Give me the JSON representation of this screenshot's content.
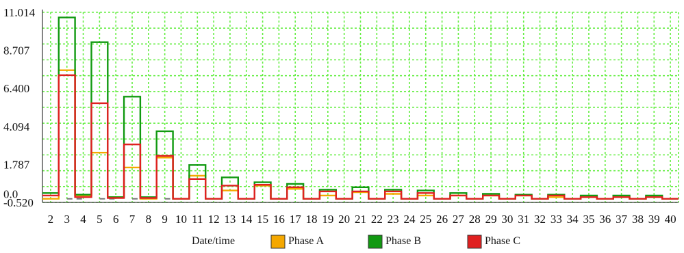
{
  "chart_data": {
    "type": "line",
    "step": true,
    "x_label": "Date/time",
    "x": [
      2,
      3,
      4,
      5,
      6,
      7,
      8,
      9,
      10,
      11,
      12,
      13,
      14,
      15,
      16,
      17,
      18,
      19,
      20,
      21,
      22,
      23,
      24,
      25,
      26,
      27,
      28,
      29,
      30,
      31,
      32,
      33,
      34,
      35,
      36,
      37,
      38,
      39,
      40
    ],
    "x_tick_labels": [
      "2",
      "3",
      "4",
      "5",
      "6",
      "7",
      "8",
      "9",
      "10",
      "11",
      "12",
      "13",
      "14",
      "15",
      "16",
      "17",
      "18",
      "19",
      "20",
      "21",
      "22",
      "23",
      "24",
      "25",
      "26",
      "27",
      "28",
      "29",
      "30",
      "31",
      "32",
      "33",
      "34",
      "35",
      "36",
      "37",
      "38",
      "39",
      "40"
    ],
    "y_tick_labels": [
      "11.014",
      "8.707",
      "6.400",
      "4.094",
      "1.787",
      "0.0",
      "-0.520"
    ],
    "y_ticks": [
      11.014,
      8.707,
      6.4,
      4.094,
      1.787,
      0.0,
      -0.52
    ],
    "ylim": [
      -0.52,
      11.014
    ],
    "grid": true,
    "grid_color": "#66ee44",
    "legend_position": "bottom",
    "series": [
      {
        "name": "Phase A",
        "color": "#f5a800",
        "values": [
          -0.3,
          7.5,
          -0.1,
          2.5,
          -0.2,
          1.6,
          -0.3,
          2.2,
          -0.3,
          1.1,
          -0.3,
          0.2,
          -0.3,
          0.5,
          -0.3,
          0.3,
          -0.3,
          -0.1,
          -0.3,
          0.1,
          -0.3,
          0.0,
          -0.3,
          -0.1,
          -0.3,
          -0.1,
          -0.3,
          -0.1,
          -0.3,
          -0.1,
          -0.3,
          -0.2,
          -0.3,
          -0.2,
          -0.3,
          -0.2,
          -0.3,
          -0.2,
          -0.3
        ]
      },
      {
        "name": "Phase B",
        "color": "#119911",
        "values": [
          0.05,
          10.7,
          -0.05,
          9.2,
          -0.2,
          5.9,
          -0.2,
          3.8,
          -0.3,
          1.75,
          -0.3,
          1.0,
          -0.3,
          0.7,
          -0.3,
          0.6,
          -0.3,
          0.25,
          -0.3,
          0.4,
          -0.3,
          0.25,
          -0.3,
          0.2,
          -0.3,
          0.05,
          -0.3,
          0.0,
          -0.3,
          -0.05,
          -0.3,
          -0.05,
          -0.3,
          -0.1,
          -0.3,
          -0.1,
          -0.3,
          -0.1,
          -0.3
        ]
      },
      {
        "name": "Phase C",
        "color": "#e02020",
        "values": [
          -0.1,
          7.2,
          -0.2,
          5.5,
          -0.25,
          3.0,
          -0.25,
          2.3,
          -0.3,
          0.9,
          -0.3,
          0.5,
          -0.3,
          0.55,
          -0.3,
          0.4,
          -0.3,
          0.15,
          -0.3,
          0.15,
          -0.3,
          0.15,
          -0.3,
          0.05,
          -0.3,
          -0.1,
          -0.3,
          -0.1,
          -0.3,
          -0.1,
          -0.3,
          -0.1,
          -0.3,
          -0.2,
          -0.3,
          -0.2,
          -0.3,
          -0.2,
          -0.3
        ]
      }
    ]
  }
}
